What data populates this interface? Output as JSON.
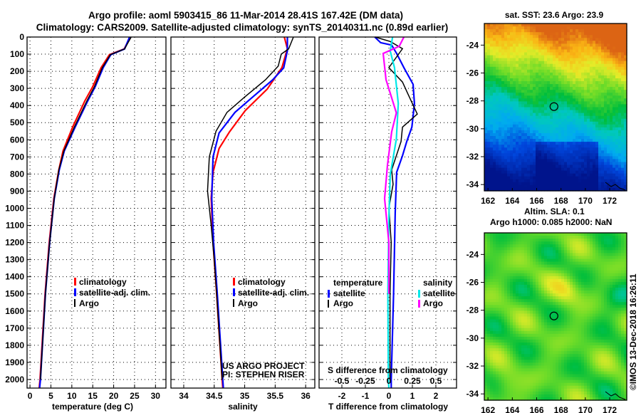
{
  "header": {
    "title_line1": "Argo profile: aoml 5903415_86 11-Mar-2014 28.41S 167.42E (DM data)",
    "title_line2": "Climatology: CARS2009. Satellite-adjusted climatology: synTS_20140311.nc (0.89d earlier)"
  },
  "colors": {
    "climatology": "#ff0000",
    "satellite": "#0000ff",
    "argo": "#000000",
    "s_satellite": "#00e8e8",
    "s_argo": "#ff00ff"
  },
  "chart_data": [
    {
      "type": "line",
      "id": "temperature",
      "xlabel": "temperature (deg C)",
      "ylabel": "",
      "xlim": [
        -0.7,
        32.5
      ],
      "ylim": [
        0,
        2050
      ],
      "y_reversed": true,
      "xticks": [
        0,
        5,
        10,
        15,
        20,
        25,
        30
      ],
      "yticks": [
        0,
        100,
        200,
        300,
        400,
        500,
        600,
        700,
        800,
        900,
        1000,
        1100,
        1200,
        1300,
        1400,
        1500,
        1600,
        1700,
        1800,
        1900,
        2000
      ],
      "grid": true,
      "legend": [
        "climatology",
        "satellite-adj. clim.",
        "Argo"
      ],
      "series": [
        {
          "name": "climatology",
          "color": "#ff0000",
          "depth": [
            0,
            70,
            103,
            179,
            290,
            373,
            526,
            665,
            776,
            943,
            1200,
            1500,
            2000,
            2050
          ],
          "values": [
            24.0,
            22.5,
            19.0,
            17.0,
            15.0,
            13.1,
            10.2,
            7.9,
            6.9,
            5.7,
            4.6,
            3.6,
            2.4,
            2.2
          ]
        },
        {
          "name": "satellite-adj. clim.",
          "color": "#0000ff",
          "depth": [
            0,
            70,
            103,
            179,
            290,
            373,
            526,
            665,
            776,
            943,
            1200,
            1500,
            2000,
            2050
          ],
          "values": [
            23.8,
            22.6,
            19.3,
            17.5,
            15.6,
            13.8,
            10.8,
            8.2,
            7.0,
            5.8,
            4.7,
            3.7,
            2.5,
            2.3
          ]
        },
        {
          "name": "Argo",
          "color": "#000000",
          "depth": [
            0,
            30,
            70,
            103,
            179,
            290,
            373,
            526,
            665,
            776,
            943,
            1200,
            1500,
            2000
          ],
          "values": [
            24.2,
            23.5,
            22.6,
            19.2,
            17.3,
            15.4,
            13.6,
            10.6,
            8.1,
            6.9,
            5.8,
            4.7,
            3.7,
            2.5
          ]
        }
      ]
    },
    {
      "type": "line",
      "id": "salinity",
      "xlabel": "salinity",
      "xlim": [
        33.79,
        36.15
      ],
      "ylim": [
        0,
        2050
      ],
      "y_reversed": true,
      "xticks": [
        34,
        34.5,
        35,
        35.5,
        36
      ],
      "grid": true,
      "legend": [
        "climatology",
        "satellite-adj. clim.",
        "Argo"
      ],
      "series": [
        {
          "name": "climatology",
          "color": "#ff0000",
          "depth": [
            0,
            68,
            179,
            304,
            429,
            554,
            651,
            790,
            943,
            1200,
            1500,
            2000,
            2050
          ],
          "values": [
            35.65,
            35.7,
            35.61,
            35.37,
            35.01,
            34.75,
            34.58,
            34.48,
            34.45,
            34.48,
            34.54,
            34.63,
            34.64
          ]
        },
        {
          "name": "satellite-adj. clim.",
          "color": "#0000ff",
          "depth": [
            0,
            80,
            180,
            250,
            360,
            440,
            560,
            700,
            943,
            1200,
            1500,
            2000,
            2050
          ],
          "values": [
            35.7,
            35.7,
            35.64,
            35.46,
            35.1,
            34.84,
            34.58,
            34.48,
            34.46,
            34.49,
            34.55,
            34.64,
            34.65
          ]
        },
        {
          "name": "Argo",
          "color": "#000000",
          "depth": [
            0,
            70,
            100,
            170,
            250,
            350,
            440,
            550,
            700,
            900,
            1100,
            1300,
            1500,
            2000
          ],
          "values": [
            35.8,
            35.72,
            35.6,
            35.55,
            35.34,
            35.0,
            34.71,
            34.53,
            34.42,
            34.39,
            34.45,
            34.5,
            34.54,
            34.63
          ]
        }
      ]
    },
    {
      "type": "line",
      "id": "differences",
      "xlabel": "T difference from climatology",
      "x2label": "S difference from climatology",
      "xlim": [
        -2.97,
        2.88
      ],
      "x2lim": [
        -0.742,
        0.72
      ],
      "ylim": [
        0,
        2050
      ],
      "y_reversed": true,
      "xticks": [
        -2,
        -1,
        0,
        1,
        2
      ],
      "x2ticks": [
        -0.5,
        -0.25,
        0,
        0.25,
        0.5
      ],
      "x2ticklabels": [
        "-0.5",
        "-0.25",
        "0",
        "0.25",
        "0.5"
      ],
      "grid": true,
      "legend_groups": {
        "temperature": [
          "satellite",
          "Argo"
        ],
        "salinity": [
          "satellite",
          "Argo"
        ]
      },
      "series": [
        {
          "name": "T satellite",
          "axis": "T",
          "color": "#0000ff",
          "depth": [
            0,
            33,
            47,
            96,
            179,
            276,
            388,
            526,
            610,
            693,
            790,
            1026,
            1500,
            2000,
            2050
          ],
          "values": [
            -0.6,
            -0.35,
            0.12,
            0.33,
            0.64,
            1.03,
            1.09,
            0.98,
            0.76,
            0.58,
            0.33,
            0.27,
            0.2,
            0.1,
            0.1
          ]
        },
        {
          "name": "T Argo",
          "axis": "T",
          "color": "#000000",
          "depth": [
            0,
            26,
            68,
            179,
            263,
            332,
            450,
            526,
            610,
            776,
            860,
            999,
            1200,
            1500,
            2000
          ],
          "values": [
            -0.58,
            0.06,
            0.58,
            0.0,
            0.58,
            0.81,
            1.21,
            0.58,
            0.52,
            0.12,
            0.18,
            0.0,
            0.1,
            0.05,
            0.05
          ]
        },
        {
          "name": "S satellite",
          "axis": "S",
          "color": "#00e8e8",
          "depth": [
            0,
            82,
            179,
            388,
            596,
            804,
            1054,
            1500,
            2000,
            2050
          ],
          "values": [
            0.04,
            0.015,
            0.06,
            0.1,
            0.08,
            0.015,
            0.0,
            -0.01,
            -0.005,
            0.0
          ]
        },
        {
          "name": "S Argo",
          "axis": "S",
          "color": "#ff00ff",
          "depth": [
            0,
            54,
            96,
            249,
            443,
            554,
            749,
            943,
            1200,
            1500
          ],
          "values": [
            0.16,
            0.11,
            -0.06,
            -0.03,
            0.08,
            0.03,
            -0.015,
            -0.045,
            0.0,
            0.0
          ]
        }
      ]
    }
  ],
  "legend": {
    "climatology": "climatology",
    "satellite_adj": "satellite-adj. clim.",
    "argo": "Argo",
    "temperature": "temperature",
    "salinity": "salinity",
    "satellite": "satellite"
  },
  "credit": {
    "line1": "US ARGO PROJECT",
    "line2": "PI: STEPHEN RISER"
  },
  "maps": {
    "sst": {
      "title": "sat. SST: 23.6 Argo: 23.9"
    },
    "sla": {
      "title_line1": "Altim. SLA: 0.1",
      "title_line2": "Argo h1000: 0.085 h2000: NaN"
    },
    "lon_ticks": [
      "162",
      "164",
      "166",
      "168",
      "170",
      "172"
    ],
    "lat_ticks": [
      "-24",
      "-26",
      "-28",
      "-30",
      "-32",
      "-34"
    ],
    "float_position": {
      "lon": 167.42,
      "lat": -28.41
    }
  },
  "footer": {
    "stamp": "©IMOS 13-Dec-2018 16:26:11"
  }
}
